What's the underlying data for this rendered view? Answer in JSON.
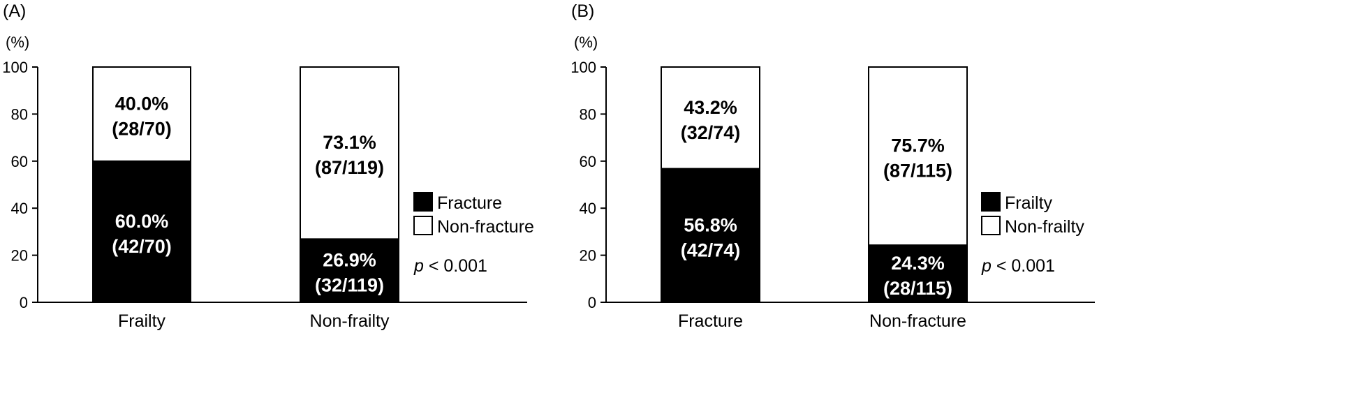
{
  "chart_data": [
    {
      "panel_label": "(A)",
      "type": "bar",
      "stacked": true,
      "y_unit": "(%)",
      "ylim": [
        0,
        100
      ],
      "y_ticks": [
        "0",
        "20",
        "40",
        "60",
        "80",
        "100"
      ],
      "categories": [
        "Frailty",
        "Non-frailty"
      ],
      "series": [
        {
          "name": "Fracture",
          "color": "#000000",
          "values": [
            60.0,
            26.9
          ],
          "labels": [
            [
              "60.0%",
              "(42/70)"
            ],
            [
              "26.9%",
              "(32/119)"
            ]
          ]
        },
        {
          "name": "Non-fracture",
          "color": "#ffffff",
          "values": [
            40.0,
            73.1
          ],
          "labels": [
            [
              "40.0%",
              "(28/70)"
            ],
            [
              "73.1%",
              "(87/119)"
            ]
          ]
        }
      ],
      "p_symbol": "p",
      "p_value": "< 0.001"
    },
    {
      "panel_label": "(B)",
      "type": "bar",
      "stacked": true,
      "y_unit": "(%)",
      "ylim": [
        0,
        100
      ],
      "y_ticks": [
        "0",
        "20",
        "40",
        "60",
        "80",
        "100"
      ],
      "categories": [
        "Fracture",
        "Non-fracture"
      ],
      "series": [
        {
          "name": "Frailty",
          "color": "#000000",
          "values": [
            56.8,
            24.3
          ],
          "labels": [
            [
              "56.8%",
              "(42/74)"
            ],
            [
              "24.3%",
              "(28/115)"
            ]
          ]
        },
        {
          "name": "Non-frailty",
          "color": "#ffffff",
          "values": [
            43.2,
            75.7
          ],
          "labels": [
            [
              "43.2%",
              "(32/74)"
            ],
            [
              "75.7%",
              "(87/115)"
            ]
          ]
        }
      ],
      "p_symbol": "p",
      "p_value": "< 0.001"
    }
  ]
}
